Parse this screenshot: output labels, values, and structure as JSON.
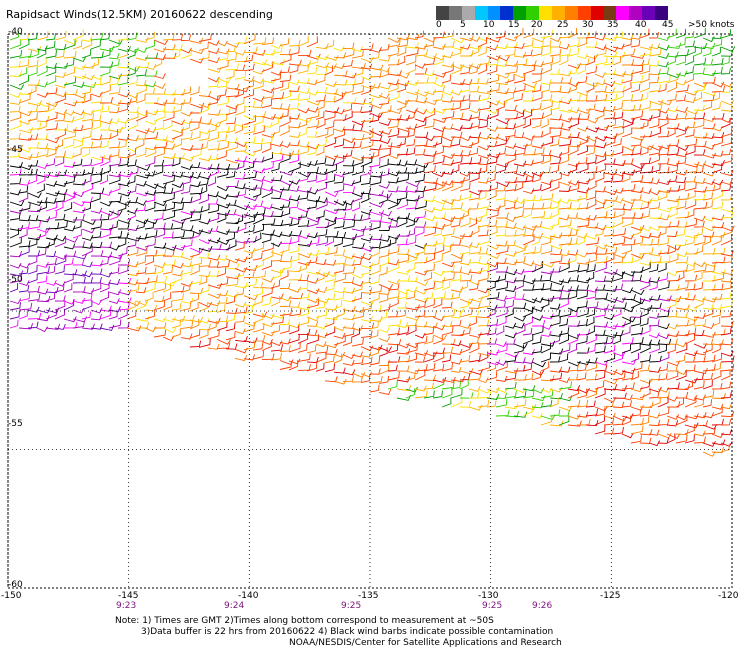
{
  "title": "Rapidsact Winds(12.5KM) 20160622 descending",
  "legend": {
    "colors": [
      "#444444",
      "#777777",
      "#aaaaaa",
      "#00c8ff",
      "#0090ff",
      "#0030d0",
      "#00a000",
      "#30d000",
      "#ffe000",
      "#ffb000",
      "#ff8000",
      "#ff4000",
      "#e00000",
      "#7a3a14",
      "#ff00ff",
      "#b000c0",
      "#6a00b8",
      "#3a0080"
    ],
    "labels": [
      "0",
      "5",
      "10",
      "15",
      "20",
      "25",
      "30",
      "35",
      "40",
      "45",
      ">50 knots"
    ]
  },
  "axes": {
    "lon_ticks": [
      "-150",
      "-145",
      "-140",
      "-135",
      "-130",
      "-125",
      "-120"
    ],
    "lat_ticks": [
      "-40",
      "-45",
      "-50",
      "-55",
      "-60"
    ],
    "lon_range": [
      -150,
      -120
    ],
    "lat_range": [
      -40,
      -60
    ]
  },
  "times": [
    "9:23",
    "9:24",
    "9:25",
    "9:25",
    "9:26"
  ],
  "notes": [
    "Note: 1) Times are GMT 2)Times along bottom correspond to measurement at ~50S",
    "3)Data buffer is 22 hrs from 20160622 4) Black wind barbs indicate possible contamination",
    "NOAA/NESDIS/Center for Satellite Applications and Research"
  ]
}
